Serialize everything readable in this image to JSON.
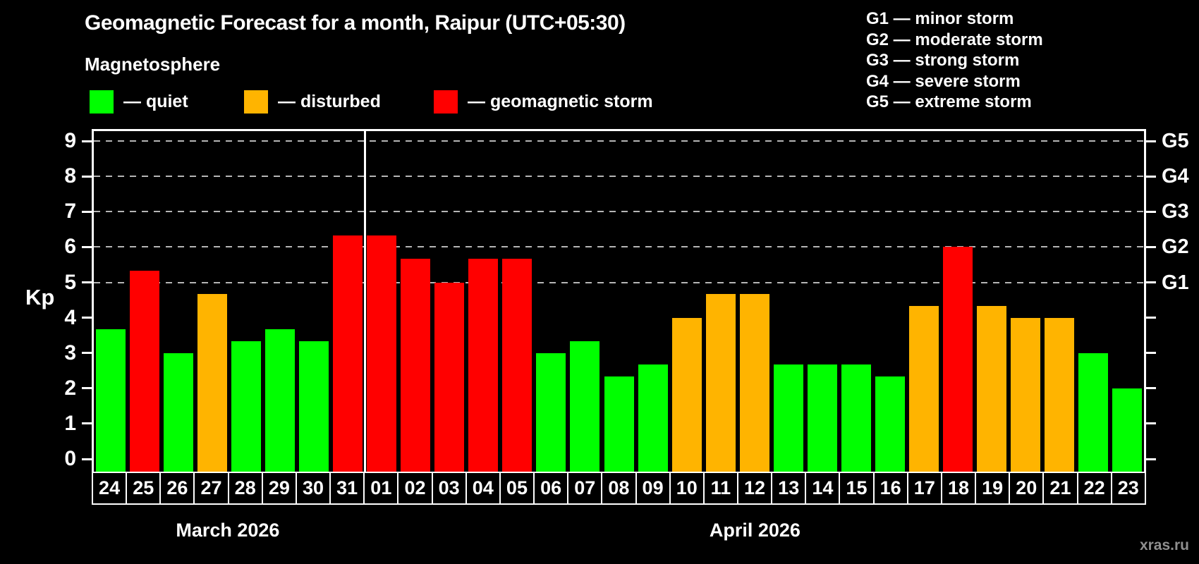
{
  "title": "Geomagnetic Forecast for a month, Raipur (UTC+05:30)",
  "subtitle": "Magnetosphere",
  "legend": {
    "quiet": "— quiet",
    "disturbed": "— disturbed",
    "storm": "— geomagnetic storm"
  },
  "g_legend": [
    "G1 — minor storm",
    "G2 — moderate storm",
    "G3 — strong storm",
    "G4 — severe storm",
    "G5 — extreme storm"
  ],
  "watermark": "xras.ru",
  "colors": {
    "quiet": "#00FF00",
    "disturbed": "#FFB400",
    "storm": "#FF0000",
    "grid": "#B5B5B5",
    "axis": "#FFFFFF",
    "watermark": "#8F8F8F",
    "background": "#000000"
  },
  "axis": {
    "kp_label": "Kp",
    "y_ticks": [
      0,
      1,
      2,
      3,
      4,
      5,
      6,
      7,
      8,
      9
    ],
    "g_ticks": [
      {
        "kp": 5,
        "label": "G1"
      },
      {
        "kp": 6,
        "label": "G2"
      },
      {
        "kp": 7,
        "label": "G3"
      },
      {
        "kp": 8,
        "label": "G4"
      },
      {
        "kp": 9,
        "label": "G5"
      }
    ]
  },
  "chart_data": {
    "type": "bar",
    "title": "Geomagnetic Forecast for a month, Raipur (UTC+05:30)",
    "xlabel": "",
    "ylabel": "Kp",
    "ylim": [
      0,
      9
    ],
    "grid": "horizontal dashed lines at Kp 5,6,7,8,9 (G1–G5 storm levels)",
    "legend_position": "top",
    "gridlines_at": [
      5,
      6,
      7,
      8,
      9
    ],
    "categories": [
      "24",
      "25",
      "26",
      "27",
      "28",
      "29",
      "30",
      "31",
      "01",
      "02",
      "03",
      "04",
      "05",
      "06",
      "07",
      "08",
      "09",
      "10",
      "11",
      "12",
      "13",
      "14",
      "15",
      "16",
      "17",
      "18",
      "19",
      "20",
      "21",
      "22",
      "23"
    ],
    "values": [
      3.67,
      5.33,
      3.0,
      4.67,
      3.33,
      3.67,
      3.33,
      6.33,
      6.33,
      5.67,
      5.0,
      5.67,
      5.67,
      3.0,
      3.33,
      2.33,
      2.67,
      4.0,
      4.67,
      4.67,
      2.67,
      2.67,
      2.67,
      2.33,
      4.33,
      6.0,
      4.33,
      4.0,
      4.0,
      3.0,
      2.0
    ],
    "statuses": [
      "quiet",
      "storm",
      "quiet",
      "disturbed",
      "quiet",
      "quiet",
      "quiet",
      "storm",
      "storm",
      "storm",
      "storm",
      "storm",
      "storm",
      "quiet",
      "quiet",
      "quiet",
      "quiet",
      "disturbed",
      "disturbed",
      "disturbed",
      "quiet",
      "quiet",
      "quiet",
      "quiet",
      "disturbed",
      "storm",
      "disturbed",
      "disturbed",
      "disturbed",
      "quiet",
      "quiet"
    ],
    "months": [
      {
        "label": "March 2026",
        "days": 8
      },
      {
        "label": "April 2026",
        "days": 23
      }
    ]
  }
}
